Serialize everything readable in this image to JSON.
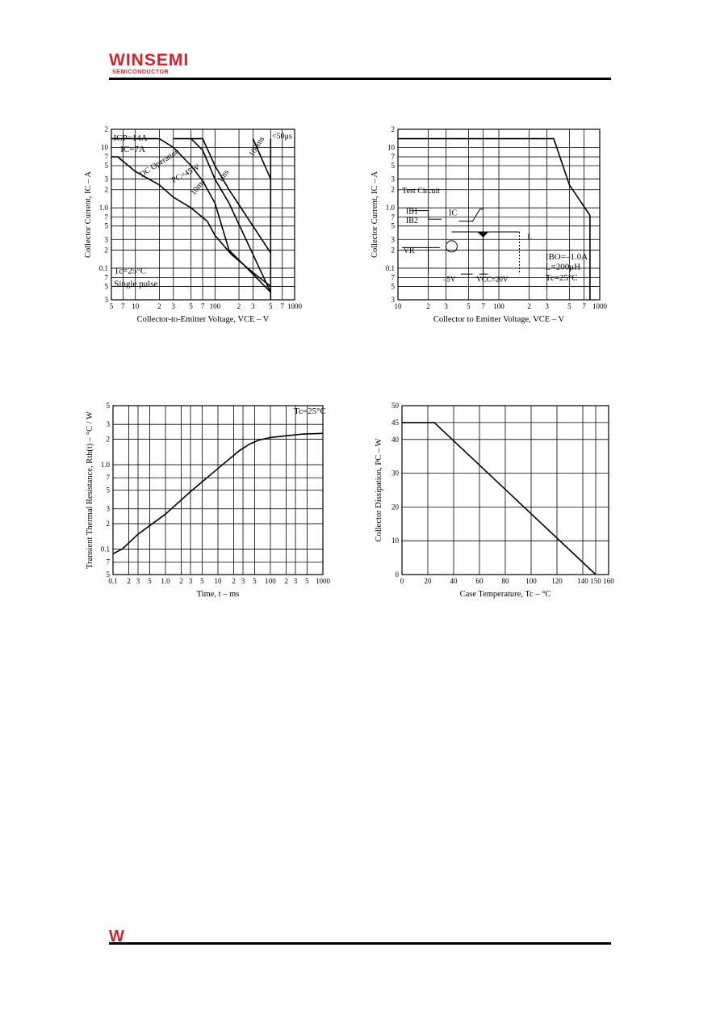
{
  "header": {
    "logo_main": "WINSEMI",
    "logo_sub": "SEMICONDUCTOR",
    "footer_logo": "W"
  },
  "charts": [
    {
      "id": "soa",
      "type": "line",
      "xscale": "log",
      "yscale": "log",
      "xlim": [
        5,
        1000
      ],
      "ylim": [
        0.03,
        20
      ],
      "xlabel": "Collector-to-Emitter Voltage, VCE  –  V",
      "ylabel": "Collector Current, IC  –  A",
      "xticks": [
        {
          "v": 5,
          "t": "5"
        },
        {
          "v": 7,
          "t": "7"
        },
        {
          "v": 10,
          "t": "10"
        },
        {
          "v": 20,
          "t": "2"
        },
        {
          "v": 30,
          "t": "3"
        },
        {
          "v": 50,
          "t": "5"
        },
        {
          "v": 70,
          "t": "7"
        },
        {
          "v": 100,
          "t": "100"
        },
        {
          "v": 200,
          "t": "2"
        },
        {
          "v": 300,
          "t": "3"
        },
        {
          "v": 500,
          "t": "5"
        },
        {
          "v": 700,
          "t": "7"
        },
        {
          "v": 1000,
          "t": "1000"
        }
      ],
      "yticks": [
        {
          "v": 0.03,
          "t": "3"
        },
        {
          "v": 0.05,
          "t": "5"
        },
        {
          "v": 0.07,
          "t": "7"
        },
        {
          "v": 0.1,
          "t": "0.1"
        },
        {
          "v": 0.2,
          "t": "2"
        },
        {
          "v": 0.3,
          "t": "3"
        },
        {
          "v": 0.5,
          "t": "5"
        },
        {
          "v": 0.7,
          "t": "7"
        },
        {
          "v": 1,
          "t": "1.0"
        },
        {
          "v": 2,
          "t": "2"
        },
        {
          "v": 3,
          "t": "3"
        },
        {
          "v": 5,
          "t": "5"
        },
        {
          "v": 7,
          "t": "7"
        },
        {
          "v": 10,
          "t": "10"
        },
        {
          "v": 20,
          "t": "2"
        }
      ],
      "series": [
        {
          "x": [
            5,
            6,
            10,
            20,
            30,
            50,
            80,
            100,
            160,
            300,
            500
          ],
          "y": [
            7,
            7,
            4,
            2.4,
            1.5,
            1.0,
            0.6,
            0.35,
            0.17,
            0.085,
            0.05
          ]
        },
        {
          "x": [
            5,
            20,
            30,
            50,
            70,
            100,
            150,
            300,
            500
          ],
          "y": [
            14,
            14,
            10,
            5,
            2.8,
            1.2,
            0.2,
            0.08,
            0.04
          ]
        },
        {
          "x": [
            30,
            50,
            70,
            100,
            150,
            500
          ],
          "y": [
            14,
            14,
            9,
            3,
            1.2,
            0.04
          ]
        },
        {
          "x": [
            50,
            70,
            100,
            150,
            500
          ],
          "y": [
            14,
            14,
            5,
            2,
            0.18
          ]
        },
        {
          "x": [
            300,
            500
          ],
          "y": [
            14,
            3
          ]
        },
        {
          "x": [
            500,
            500
          ],
          "y": [
            14,
            0.03
          ]
        }
      ],
      "annotations": [
        {
          "text": "ICP=14A",
          "x": 5.3,
          "y": 13,
          "size": 11
        },
        {
          "text": "IC=7A",
          "x": 6.5,
          "y": 8.4,
          "size": 11
        },
        {
          "text": "PC=45W",
          "x": 30,
          "y": 2.6,
          "size": 10,
          "rotate": -28
        },
        {
          "text": "DC Operation",
          "x": 12,
          "y": 3.2,
          "size": 10,
          "rotate": -33
        },
        {
          "text": "10ms",
          "x": 55,
          "y": 1.6,
          "size": 10,
          "rotate": -52
        },
        {
          "text": "1ms",
          "x": 120,
          "y": 2.6,
          "size": 10,
          "rotate": -55
        },
        {
          "text": "100ms",
          "x": 300,
          "y": 7,
          "size": 10,
          "rotate": -58
        },
        {
          "text": "<50μs",
          "x": 520,
          "y": 14,
          "size": 10
        },
        {
          "text": "Tc=25°C",
          "x": 5.4,
          "y": 0.082,
          "size": 11
        },
        {
          "text": "Single pulse",
          "x": 5.4,
          "y": 0.05,
          "size": 11
        }
      ]
    },
    {
      "id": "rbsoa",
      "type": "line",
      "xscale": "log",
      "yscale": "log",
      "xlim": [
        10,
        1000
      ],
      "ylim": [
        0.03,
        20
      ],
      "xlabel": "Collector to Emitter Voltage, VCE  –  V",
      "ylabel": "Collector Current, IC  –  A",
      "xticks": [
        {
          "v": 10,
          "t": "10"
        },
        {
          "v": 20,
          "t": "2"
        },
        {
          "v": 30,
          "t": "3"
        },
        {
          "v": 50,
          "t": "5"
        },
        {
          "v": 70,
          "t": "7"
        },
        {
          "v": 100,
          "t": "100"
        },
        {
          "v": 200,
          "t": "2"
        },
        {
          "v": 300,
          "t": "3"
        },
        {
          "v": 500,
          "t": "5"
        },
        {
          "v": 700,
          "t": "7"
        },
        {
          "v": 1000,
          "t": "1000"
        }
      ],
      "yticks": [
        {
          "v": 0.03,
          "t": "3"
        },
        {
          "v": 0.05,
          "t": "5"
        },
        {
          "v": 0.07,
          "t": "7"
        },
        {
          "v": 0.1,
          "t": "0.1"
        },
        {
          "v": 0.2,
          "t": "2"
        },
        {
          "v": 0.3,
          "t": "3"
        },
        {
          "v": 0.5,
          "t": "5"
        },
        {
          "v": 0.7,
          "t": "7"
        },
        {
          "v": 1,
          "t": "1.0"
        },
        {
          "v": 2,
          "t": "2"
        },
        {
          "v": 3,
          "t": "3"
        },
        {
          "v": 5,
          "t": "5"
        },
        {
          "v": 7,
          "t": "7"
        },
        {
          "v": 10,
          "t": "10"
        },
        {
          "v": 20,
          "t": "2"
        }
      ],
      "series": [
        {
          "x": [
            10,
            350,
            500,
            800
          ],
          "y": [
            14,
            14,
            2.4,
            0.75
          ]
        },
        {
          "x": [
            800,
            800
          ],
          "y": [
            0.75,
            0.03
          ]
        }
      ],
      "annotations": [
        {
          "text": "Test Circuit",
          "x": 11,
          "y": 1.75,
          "size": 10,
          "sans": true
        },
        {
          "text": "IB1",
          "x": 12,
          "y": 0.8,
          "size": 10,
          "sans": true
        },
        {
          "text": "IB2",
          "x": 12,
          "y": 0.56,
          "size": 10,
          "sans": true
        },
        {
          "text": "IC",
          "x": 32,
          "y": 0.75,
          "size": 10,
          "sans": true
        },
        {
          "text": "VR",
          "x": 11.3,
          "y": 0.18,
          "size": 10,
          "sans": true
        },
        {
          "text": "–5V",
          "x": 28,
          "y": 0.06,
          "size": 9,
          "sans": true
        },
        {
          "text": "VCC=20V",
          "x": 60,
          "y": 0.06,
          "size": 9,
          "sans": true
        },
        {
          "text": "L",
          "x": 192,
          "y": 0.3,
          "size": 10,
          "sans": true
        },
        {
          "text": "IBO=–1.0A",
          "x": 290,
          "y": 0.14,
          "size": 11
        },
        {
          "text": "L=200μH",
          "x": 290,
          "y": 0.095,
          "size": 11
        },
        {
          "text": "Tc=25°C",
          "x": 290,
          "y": 0.063,
          "size": 11
        }
      ]
    },
    {
      "id": "thermal",
      "type": "line",
      "xscale": "log",
      "yscale": "log",
      "xlim": [
        0.1,
        1000
      ],
      "ylim": [
        0.05,
        5
      ],
      "xlabel": "Time, t  –  ms",
      "ylabel": "Transient Thermal Resistance, Rth(t)  –  °C / W",
      "xticks": [
        {
          "v": 0.1,
          "t": "0.1"
        },
        {
          "v": 0.2,
          "t": "2"
        },
        {
          "v": 0.3,
          "t": "3"
        },
        {
          "v": 0.5,
          "t": "5"
        },
        {
          "v": 1,
          "t": "1.0"
        },
        {
          "v": 2,
          "t": "2"
        },
        {
          "v": 3,
          "t": "3"
        },
        {
          "v": 5,
          "t": "5"
        },
        {
          "v": 10,
          "t": "10"
        },
        {
          "v": 20,
          "t": "2"
        },
        {
          "v": 30,
          "t": "3"
        },
        {
          "v": 50,
          "t": "5"
        },
        {
          "v": 100,
          "t": "100"
        },
        {
          "v": 200,
          "t": "2"
        },
        {
          "v": 300,
          "t": "3"
        },
        {
          "v": 500,
          "t": "5"
        },
        {
          "v": 1000,
          "t": "1000"
        }
      ],
      "yticks": [
        {
          "v": 0.05,
          "t": "5"
        },
        {
          "v": 0.07,
          "t": "7"
        },
        {
          "v": 0.1,
          "t": "0.1"
        },
        {
          "v": 0.2,
          "t": "2"
        },
        {
          "v": 0.3,
          "t": "3"
        },
        {
          "v": 0.5,
          "t": "5"
        },
        {
          "v": 0.7,
          "t": "7"
        },
        {
          "v": 1,
          "t": "1.0"
        },
        {
          "v": 2,
          "t": "2"
        },
        {
          "v": 3,
          "t": "3"
        },
        {
          "v": 5,
          "t": "5"
        }
      ],
      "series": [
        {
          "x": [
            0.1,
            0.15,
            0.3,
            1,
            3,
            10,
            25,
            40,
            60,
            100,
            200,
            400,
            1000
          ],
          "y": [
            0.088,
            0.1,
            0.15,
            0.26,
            0.48,
            0.9,
            1.45,
            1.75,
            1.95,
            2.1,
            2.2,
            2.3,
            2.35
          ]
        }
      ],
      "annotations": [
        {
          "text": "Tc=25°C",
          "x": 280,
          "y": 4,
          "size": 11
        }
      ]
    },
    {
      "id": "derating",
      "type": "line",
      "xscale": "linear",
      "yscale": "linear",
      "xlim": [
        0,
        160
      ],
      "ylim": [
        0,
        50
      ],
      "xlabel": "Case Temperature, Tc  –  °C",
      "ylabel": "Collector Dissipation, PC  –  W",
      "xticks": [
        {
          "v": 0,
          "t": "0"
        },
        {
          "v": 20,
          "t": "20"
        },
        {
          "v": 40,
          "t": "40"
        },
        {
          "v": 60,
          "t": "60"
        },
        {
          "v": 80,
          "t": "80"
        },
        {
          "v": 100,
          "t": "100"
        },
        {
          "v": 120,
          "t": "120"
        },
        {
          "v": 140,
          "t": "140"
        },
        {
          "v": 150,
          "t": "150"
        },
        {
          "v": 160,
          "t": "160"
        }
      ],
      "yticks": [
        {
          "v": 0,
          "t": "0"
        },
        {
          "v": 10,
          "t": "10"
        },
        {
          "v": 20,
          "t": "20"
        },
        {
          "v": 30,
          "t": "30"
        },
        {
          "v": 40,
          "t": "40"
        },
        {
          "v": 45,
          "t": "45"
        },
        {
          "v": 50,
          "t": "50"
        }
      ],
      "series": [
        {
          "x": [
            0,
            25,
            150
          ],
          "y": [
            45,
            45,
            0
          ]
        }
      ],
      "annotations": []
    }
  ]
}
